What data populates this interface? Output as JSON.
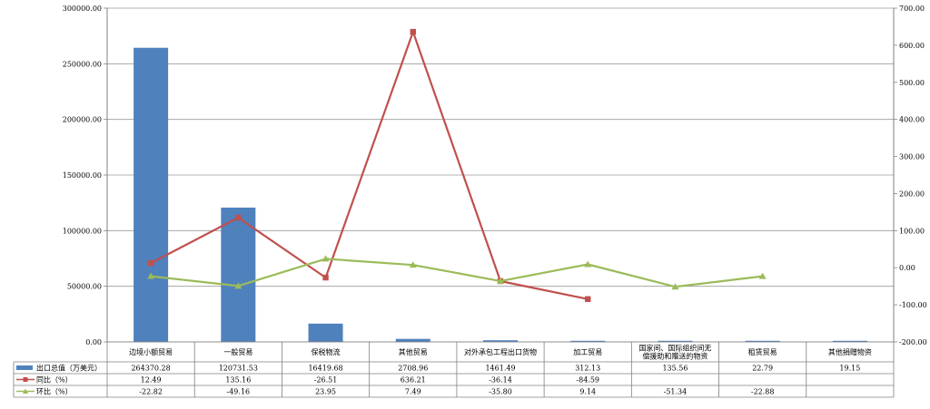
{
  "chart_data": {
    "type": "bar",
    "categories": [
      "边境小额贸易",
      "一般贸易",
      "保税物流",
      "其他贸易",
      "对外承包工程出口货物",
      "加工贸易",
      [
        "国家间、国际组织间无",
        "偿援助和赠送的物资"
      ],
      "租赁贸易",
      "其他捐赠物资"
    ],
    "series": [
      {
        "name": "出口总值（万美元）",
        "kind": "bar",
        "axis": "left",
        "color": "#4F81BD",
        "values": [
          264370.28,
          120731.53,
          16419.68,
          2708.96,
          1461.49,
          312.13,
          135.56,
          22.79,
          19.15
        ],
        "labels": [
          "264370.28",
          "120731.53",
          "16419.68",
          "2708.96",
          "1461.49",
          "312.13",
          "135.56",
          "22.79",
          "19.15"
        ]
      },
      {
        "name": "同比（%）",
        "kind": "line",
        "axis": "right",
        "color": "#C0504D",
        "marker": "square",
        "values": [
          12.49,
          135.16,
          -26.51,
          636.21,
          -36.14,
          -84.59,
          null,
          null,
          null
        ],
        "labels": [
          "12.49",
          "135.16",
          "-26.51",
          "636.21",
          "-36.14",
          "-84.59",
          "",
          "",
          ""
        ]
      },
      {
        "name": "环比（%）",
        "kind": "line",
        "axis": "right",
        "color": "#9BBB59",
        "marker": "triangle",
        "values": [
          -22.82,
          -49.16,
          23.95,
          7.49,
          -35.8,
          9.14,
          -51.34,
          -22.88,
          null
        ],
        "labels": [
          "-22.82",
          "-49.16",
          "23.95",
          "7.49",
          "-35.80",
          "9.14",
          "-51.34",
          "-22.88",
          ""
        ]
      }
    ],
    "left_axis": {
      "min": 0,
      "max": 300000,
      "step": 50000,
      "ticks": [
        "0.00",
        "50000.00",
        "100000.00",
        "150000.00",
        "200000.00",
        "250000.00",
        "300000.00"
      ]
    },
    "right_axis": {
      "min": -200,
      "max": 700,
      "step": 100,
      "ticks": [
        "-200.00",
        "-100.00",
        "0.00",
        "100.00",
        "200.00",
        "300.00",
        "400.00",
        "500.00",
        "600.00",
        "700.00"
      ]
    },
    "grid": true,
    "legend": "data-table"
  }
}
